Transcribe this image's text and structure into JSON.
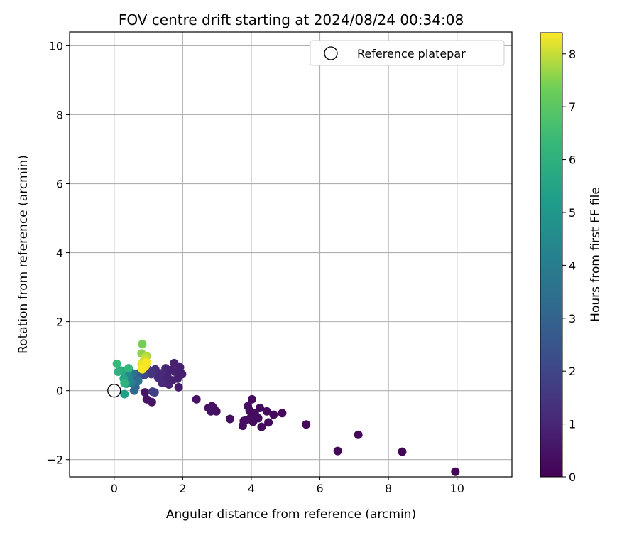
{
  "chart_data": {
    "type": "scatter",
    "title": "FOV centre drift starting at 2024/08/24 00:34:08",
    "xlabel": "Angular distance from reference (arcmin)",
    "ylabel": "Rotation from reference (arcmin)",
    "xlim": [
      -1.3,
      11.6
    ],
    "ylim": [
      -2.5,
      10.4
    ],
    "xticks": [
      0,
      2,
      4,
      6,
      8,
      10
    ],
    "xtick_labels": [
      "0",
      "2",
      "4",
      "6",
      "8",
      "10"
    ],
    "yticks": [
      -2,
      0,
      2,
      4,
      6,
      8,
      10
    ],
    "ytick_labels": [
      "−2",
      "0",
      "2",
      "4",
      "6",
      "8",
      "10"
    ],
    "grid": true,
    "legend": {
      "position": "top-right",
      "entries": [
        "Reference platepar"
      ]
    },
    "reference_point": {
      "x": 0,
      "y": 0
    },
    "colorbar": {
      "label": "Hours from first FF file",
      "colormap": "viridis",
      "range": [
        0,
        8.4
      ],
      "ticks": [
        0,
        1,
        2,
        3,
        4,
        5,
        6,
        7,
        8
      ],
      "tick_labels": [
        "0",
        "1",
        "2",
        "3",
        "4",
        "5",
        "6",
        "7",
        "8"
      ]
    },
    "points": [
      {
        "x": 9.95,
        "y": -2.35,
        "h": 0.1
      },
      {
        "x": 8.4,
        "y": -1.77,
        "h": 0.1
      },
      {
        "x": 7.12,
        "y": -1.28,
        "h": 0.15
      },
      {
        "x": 6.52,
        "y": -1.75,
        "h": 0.15
      },
      {
        "x": 5.6,
        "y": -0.98,
        "h": 0.2
      },
      {
        "x": 4.9,
        "y": -0.65,
        "h": 0.2
      },
      {
        "x": 4.65,
        "y": -0.7,
        "h": 0.2
      },
      {
        "x": 4.5,
        "y": -0.92,
        "h": 0.25
      },
      {
        "x": 4.45,
        "y": -0.6,
        "h": 0.25
      },
      {
        "x": 4.3,
        "y": -1.05,
        "h": 0.25
      },
      {
        "x": 4.25,
        "y": -0.5,
        "h": 0.25
      },
      {
        "x": 4.2,
        "y": -0.8,
        "h": 0.3
      },
      {
        "x": 4.1,
        "y": -0.65,
        "h": 0.3
      },
      {
        "x": 4.05,
        "y": -0.9,
        "h": 0.3
      },
      {
        "x": 4.0,
        "y": -0.75,
        "h": 0.3
      },
      {
        "x": 4.02,
        "y": -0.25,
        "h": 0.3
      },
      {
        "x": 3.95,
        "y": -0.58,
        "h": 0.3
      },
      {
        "x": 3.9,
        "y": -0.45,
        "h": 0.35
      },
      {
        "x": 3.85,
        "y": -0.85,
        "h": 0.35
      },
      {
        "x": 3.78,
        "y": -0.88,
        "h": 0.35
      },
      {
        "x": 3.75,
        "y": -1.02,
        "h": 0.35
      },
      {
        "x": 3.38,
        "y": -0.82,
        "h": 0.35
      },
      {
        "x": 2.98,
        "y": -0.6,
        "h": 0.4
      },
      {
        "x": 2.9,
        "y": -0.5,
        "h": 0.4
      },
      {
        "x": 2.85,
        "y": -0.45,
        "h": 0.4
      },
      {
        "x": 2.82,
        "y": -0.6,
        "h": 0.4
      },
      {
        "x": 2.75,
        "y": -0.5,
        "h": 0.45
      },
      {
        "x": 2.4,
        "y": -0.25,
        "h": 0.45
      },
      {
        "x": 0.95,
        "y": -0.25,
        "h": 0.5
      },
      {
        "x": 1.1,
        "y": -0.33,
        "h": 0.5
      },
      {
        "x": 0.9,
        "y": -0.05,
        "h": 0.55
      },
      {
        "x": 1.88,
        "y": 0.1,
        "h": 0.7
      },
      {
        "x": 1.98,
        "y": 0.48,
        "h": 0.8
      },
      {
        "x": 1.92,
        "y": 0.68,
        "h": 0.8
      },
      {
        "x": 1.85,
        "y": 0.35,
        "h": 0.8
      },
      {
        "x": 1.78,
        "y": 0.55,
        "h": 0.85
      },
      {
        "x": 1.75,
        "y": 0.8,
        "h": 0.85
      },
      {
        "x": 1.7,
        "y": 0.3,
        "h": 0.9
      },
      {
        "x": 1.65,
        "y": 0.6,
        "h": 0.9
      },
      {
        "x": 1.6,
        "y": 0.18,
        "h": 0.95
      },
      {
        "x": 1.55,
        "y": 0.42,
        "h": 0.95
      },
      {
        "x": 1.5,
        "y": 0.65,
        "h": 1.0
      },
      {
        "x": 1.45,
        "y": 0.3,
        "h": 1.0
      },
      {
        "x": 1.4,
        "y": 0.22,
        "h": 1.05
      },
      {
        "x": 1.35,
        "y": 0.5,
        "h": 1.1
      },
      {
        "x": 1.28,
        "y": 0.38,
        "h": 1.15
      },
      {
        "x": 1.2,
        "y": 0.62,
        "h": 1.2
      },
      {
        "x": 1.15,
        "y": 0.55,
        "h": 1.3
      },
      {
        "x": 1.08,
        "y": 0.48,
        "h": 1.4
      },
      {
        "x": 1.0,
        "y": 0.6,
        "h": 1.5
      },
      {
        "x": 0.95,
        "y": 0.52,
        "h": 1.6
      },
      {
        "x": 1.12,
        "y": -0.03,
        "h": 1.7
      },
      {
        "x": 1.18,
        "y": -0.05,
        "h": 1.8
      },
      {
        "x": 0.88,
        "y": 0.45,
        "h": 2.0
      },
      {
        "x": 0.8,
        "y": 0.55,
        "h": 2.2
      },
      {
        "x": 0.72,
        "y": 0.5,
        "h": 2.5
      },
      {
        "x": 0.65,
        "y": 0.4,
        "h": 2.8
      },
      {
        "x": 0.62,
        "y": 0.1,
        "h": 3.0
      },
      {
        "x": 0.58,
        "y": 0.0,
        "h": 3.2
      },
      {
        "x": 0.7,
        "y": 0.28,
        "h": 3.4
      },
      {
        "x": 0.55,
        "y": 0.5,
        "h": 3.7
      },
      {
        "x": 0.5,
        "y": 0.22,
        "h": 4.0
      },
      {
        "x": 0.45,
        "y": 0.35,
        "h": 4.3
      },
      {
        "x": 0.4,
        "y": 0.55,
        "h": 4.6
      },
      {
        "x": 0.35,
        "y": 0.2,
        "h": 5.0
      },
      {
        "x": 0.3,
        "y": -0.1,
        "h": 5.3
      },
      {
        "x": 0.28,
        "y": 0.35,
        "h": 5.5
      },
      {
        "x": 0.22,
        "y": 0.58,
        "h": 5.8
      },
      {
        "x": 0.12,
        "y": 0.55,
        "h": 6.0
      },
      {
        "x": 0.3,
        "y": 0.22,
        "h": 6.1
      },
      {
        "x": 0.42,
        "y": 0.65,
        "h": 6.2
      },
      {
        "x": 0.08,
        "y": 0.78,
        "h": 6.3
      },
      {
        "x": 0.82,
        "y": 1.35,
        "h": 7.4
      },
      {
        "x": 0.8,
        "y": 1.08,
        "h": 7.6
      },
      {
        "x": 0.95,
        "y": 1.0,
        "h": 7.8
      },
      {
        "x": 0.9,
        "y": 0.95,
        "h": 8.0
      },
      {
        "x": 0.85,
        "y": 0.85,
        "h": 8.1
      },
      {
        "x": 0.92,
        "y": 0.72,
        "h": 8.2
      },
      {
        "x": 0.8,
        "y": 0.78,
        "h": 8.25
      },
      {
        "x": 0.88,
        "y": 0.68,
        "h": 8.3
      },
      {
        "x": 0.95,
        "y": 0.82,
        "h": 8.35
      },
      {
        "x": 0.82,
        "y": 0.62,
        "h": 8.4
      }
    ]
  }
}
